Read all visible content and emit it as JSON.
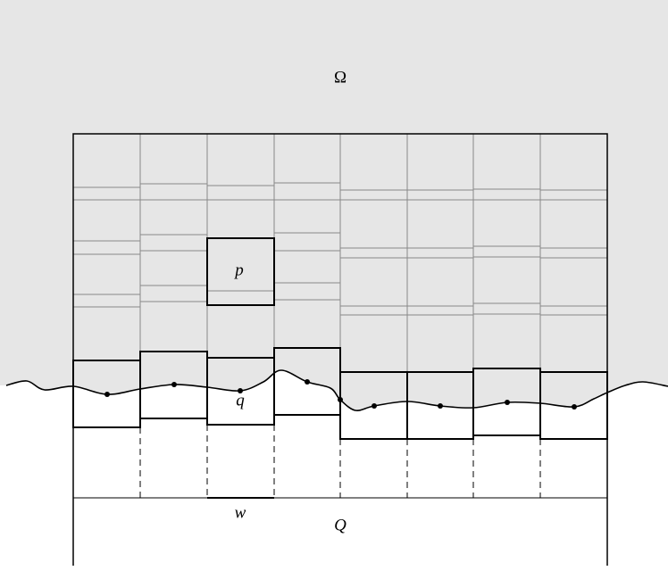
{
  "labels": {
    "omega": "Ω",
    "p": "p",
    "q": "q",
    "w": "w",
    "Q": "Q"
  }
}
